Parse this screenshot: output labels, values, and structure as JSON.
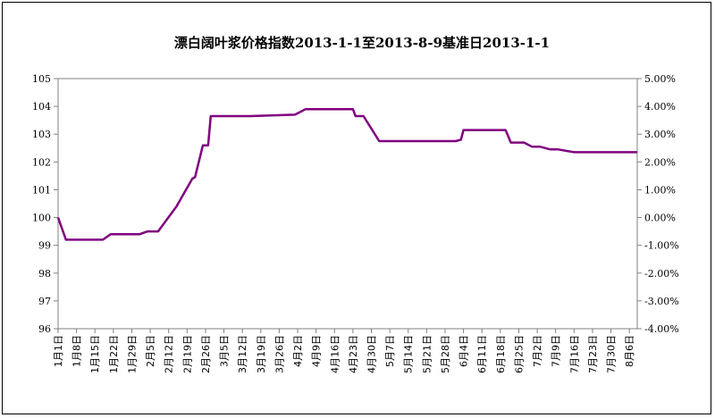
{
  "chart_data": {
    "type": "line",
    "title": "漂白阔叶浆价格指数2013-1-1至2013-8-9基准日2013-1-1",
    "xlabel": "",
    "ylabel": "",
    "ylim": [
      96,
      105
    ],
    "y2lim": [
      -0.04,
      0.05
    ],
    "grid": false,
    "legend": "none",
    "line_color": "#800080",
    "yticks": [
      "96",
      "97",
      "98",
      "99",
      "100",
      "101",
      "102",
      "103",
      "104",
      "105"
    ],
    "y2ticks": [
      "-4.00%",
      "-3.00%",
      "-2.00%",
      "-1.00%",
      "0.00%",
      "1.00%",
      "2.00%",
      "3.00%",
      "4.00%",
      "5.00%"
    ],
    "xticks": [
      "1月1日",
      "1月8日",
      "1月15日",
      "1月22日",
      "1月29日",
      "2月5日",
      "2月12日",
      "2月19日",
      "2月26日",
      "3月5日",
      "3月12日",
      "3月19日",
      "3月26日",
      "4月2日",
      "4月9日",
      "4月16日",
      "4月23日",
      "4月30日",
      "5月7日",
      "5月14日",
      "5月21日",
      "5月28日",
      "6月4日",
      "6月11日",
      "6月18日",
      "6月25日",
      "7月2日",
      "7月9日",
      "7月16日",
      "7月23日",
      "7月30日",
      "8月6日"
    ],
    "x": [
      "2013-01-01",
      "2013-01-04",
      "2013-01-11",
      "2013-01-18",
      "2013-01-21",
      "2013-01-28",
      "2013-02-01",
      "2013-02-04",
      "2013-02-08",
      "2013-02-15",
      "2013-02-21",
      "2013-02-22",
      "2013-02-25",
      "2013-02-27",
      "2013-02-28",
      "2013-03-01",
      "2013-03-15",
      "2013-04-01",
      "2013-04-05",
      "2013-04-23",
      "2013-04-24",
      "2013-04-27",
      "2013-05-03",
      "2013-06-01",
      "2013-06-03",
      "2013-06-04",
      "2013-06-07",
      "2013-06-20",
      "2013-06-22",
      "2013-06-27",
      "2013-06-30",
      "2013-07-03",
      "2013-07-07",
      "2013-07-10",
      "2013-07-13",
      "2013-07-16",
      "2013-08-09"
    ],
    "values": [
      100.0,
      99.2,
      99.2,
      99.2,
      99.4,
      99.4,
      99.4,
      99.5,
      99.5,
      100.4,
      101.4,
      101.45,
      102.6,
      102.6,
      103.65,
      103.65,
      103.65,
      103.7,
      103.9,
      103.9,
      103.65,
      103.65,
      102.75,
      102.75,
      102.8,
      103.15,
      103.15,
      103.15,
      102.7,
      102.7,
      102.55,
      102.55,
      102.45,
      102.45,
      102.4,
      102.35,
      102.35
    ]
  }
}
